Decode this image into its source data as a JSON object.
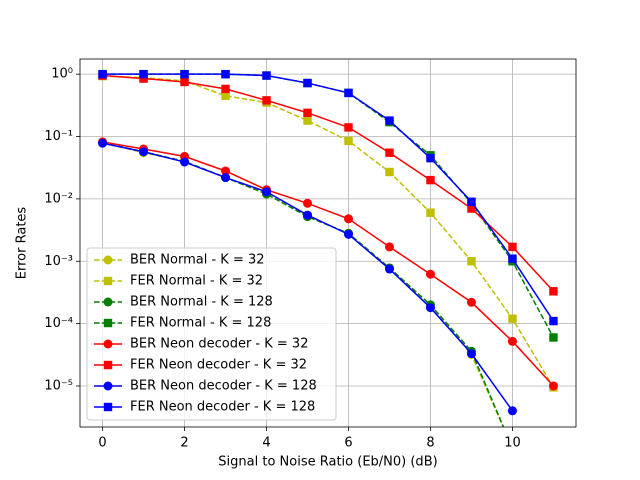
{
  "chart_data": {
    "type": "line",
    "y_label": "Error Rates",
    "x_label": "Signal to Noise Ratio (Eb/N0) (dB)",
    "x": [
      0,
      1,
      2,
      3,
      4,
      5,
      6,
      7,
      8,
      9,
      10,
      11
    ],
    "xlim": [
      -0.55,
      11.55
    ],
    "xticks": [
      0,
      2,
      4,
      6,
      8,
      10
    ],
    "ylim": [
      2.2e-06,
      1.75
    ],
    "ylog": true,
    "yticks": [
      {
        "value": 1,
        "label": "10⁰"
      },
      {
        "value": 0.1,
        "label": "10⁻¹"
      },
      {
        "value": 0.01,
        "label": "10⁻²"
      },
      {
        "value": 0.001,
        "label": "10⁻³"
      },
      {
        "value": 0.0001,
        "label": "10⁻⁴"
      },
      {
        "value": 1e-05,
        "label": "10⁻⁵"
      }
    ],
    "grid": true,
    "legend": "lower left",
    "series": [
      {
        "name": "BER Normal - K = 32",
        "color": "#bfbf00",
        "dashed": true,
        "marker": "circle",
        "values": [
          0.08,
          0.055,
          0.04,
          0.022,
          0.012,
          0.0052,
          0.0028,
          0.00078,
          0.0002,
          3.2e-05,
          1e-06,
          null
        ]
      },
      {
        "name": "FER Normal - K = 32",
        "color": "#bfbf00",
        "dashed": true,
        "marker": "square",
        "values": [
          0.93,
          0.88,
          0.78,
          0.45,
          0.35,
          0.18,
          0.085,
          0.027,
          0.006,
          0.001,
          0.00012,
          9.5e-06
        ]
      },
      {
        "name": "BER Normal - K = 128",
        "color": "#008000",
        "dashed": true,
        "marker": "circle",
        "values": [
          0.08,
          0.057,
          0.04,
          0.022,
          0.012,
          0.0052,
          0.0028,
          0.00078,
          0.0002,
          3.6e-05,
          1e-06,
          null
        ]
      },
      {
        "name": "FER Normal - K = 128",
        "color": "#008000",
        "dashed": true,
        "marker": "square",
        "values": [
          1.0,
          1.0,
          1.0,
          1.0,
          0.95,
          0.72,
          0.5,
          0.17,
          0.05,
          0.0085,
          0.001,
          6e-05
        ]
      },
      {
        "name": "BER Neon decoder - K = 32",
        "color": "#ff0000",
        "dashed": false,
        "marker": "circle",
        "values": [
          0.082,
          0.063,
          0.048,
          0.028,
          0.014,
          0.0085,
          0.0048,
          0.0017,
          0.00062,
          0.00022,
          5.2e-05,
          1e-05
        ]
      },
      {
        "name": "FER Neon decoder - K = 32",
        "color": "#ff0000",
        "dashed": false,
        "marker": "square",
        "values": [
          0.95,
          0.85,
          0.75,
          0.58,
          0.38,
          0.24,
          0.14,
          0.055,
          0.02,
          0.007,
          0.0017,
          0.00033
        ]
      },
      {
        "name": "BER Neon decoder - K = 128",
        "color": "#0000ff",
        "dashed": false,
        "marker": "circle",
        "values": [
          0.078,
          0.057,
          0.039,
          0.022,
          0.013,
          0.0055,
          0.0027,
          0.00075,
          0.00018,
          3.3e-05,
          4e-06,
          null
        ]
      },
      {
        "name": "FER Neon decoder - K = 128",
        "color": "#0000ff",
        "dashed": false,
        "marker": "square",
        "values": [
          1.0,
          1.0,
          1.0,
          1.0,
          0.95,
          0.72,
          0.5,
          0.18,
          0.045,
          0.009,
          0.0011,
          0.00011
        ]
      }
    ]
  }
}
